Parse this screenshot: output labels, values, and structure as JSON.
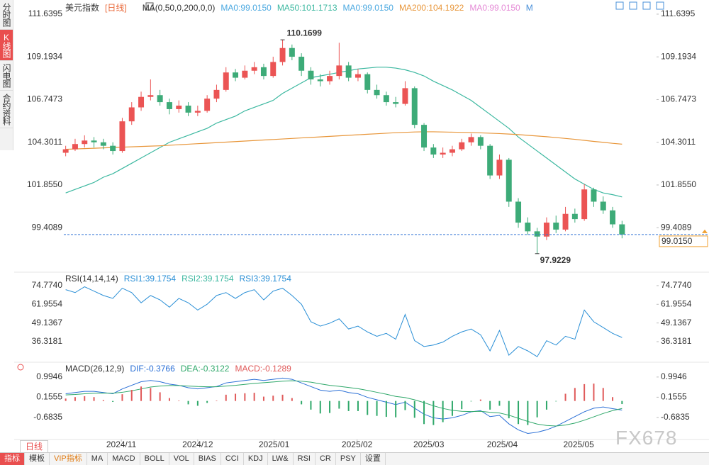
{
  "sidebar_tabs": [
    "分时图",
    "K线图",
    "闪电图",
    "合约资料"
  ],
  "period_tab": "日线",
  "toolbar": [
    "指标",
    "模板",
    "VIP指标",
    "MA",
    "MACD",
    "BOLL",
    "VOL",
    "BIAS",
    "CCI",
    "KDJ",
    "LW&",
    "RSI",
    "CR",
    "PSY",
    "设置"
  ],
  "watermark": "FX678",
  "chart_data": [
    {
      "type": "candlestick",
      "title": "美元指数",
      "period": "[日线]",
      "indicator": "MA(0,50,0,200,0,0)",
      "more_label": "M",
      "up_color": "#eb5454",
      "down_color": "#3dab78",
      "candles": [
        [
          103.7,
          104.1,
          103.5,
          103.9
        ],
        [
          103.9,
          104.5,
          103.8,
          104.2
        ],
        [
          104.2,
          104.7,
          104.0,
          104.4
        ],
        [
          104.4,
          104.6,
          104.0,
          104.3
        ],
        [
          104.3,
          104.5,
          103.9,
          104.1
        ],
        [
          104.1,
          104.3,
          103.6,
          103.8
        ],
        [
          103.8,
          105.7,
          103.7,
          105.5
        ],
        [
          105.5,
          106.6,
          105.3,
          106.3
        ],
        [
          106.3,
          107.2,
          106.1,
          106.9
        ],
        [
          106.9,
          107.9,
          106.7,
          107.0
        ],
        [
          107.0,
          107.3,
          106.4,
          106.6
        ],
        [
          106.6,
          106.8,
          105.9,
          106.2
        ],
        [
          106.2,
          106.7,
          106.0,
          106.4
        ],
        [
          106.4,
          106.6,
          105.8,
          106.0
        ],
        [
          106.0,
          106.4,
          105.8,
          106.1
        ],
        [
          106.1,
          107.0,
          106.0,
          106.8
        ],
        [
          106.8,
          107.6,
          106.6,
          107.3
        ],
        [
          107.3,
          108.6,
          107.2,
          108.3
        ],
        [
          108.3,
          108.5,
          107.8,
          108.0
        ],
        [
          108.0,
          108.7,
          107.9,
          108.4
        ],
        [
          108.4,
          108.9,
          108.2,
          108.6
        ],
        [
          108.6,
          108.8,
          107.9,
          108.1
        ],
        [
          108.1,
          109.2,
          108.0,
          108.9
        ],
        [
          108.9,
          110.1699,
          108.7,
          109.7
        ],
        [
          109.7,
          109.9,
          109.0,
          109.2
        ],
        [
          109.2,
          109.4,
          108.1,
          108.4
        ],
        [
          108.4,
          108.6,
          107.6,
          107.9
        ],
        [
          107.9,
          108.2,
          107.5,
          107.8
        ],
        [
          107.8,
          108.4,
          107.6,
          108.1
        ],
        [
          108.1,
          110.0,
          107.9,
          108.7
        ],
        [
          108.7,
          108.9,
          107.8,
          108.0
        ],
        [
          108.0,
          108.5,
          107.8,
          108.2
        ],
        [
          108.2,
          108.3,
          107.1,
          107.3
        ],
        [
          107.3,
          107.6,
          106.8,
          107.0
        ],
        [
          107.0,
          107.2,
          106.4,
          106.6
        ],
        [
          106.6,
          106.9,
          106.3,
          106.5
        ],
        [
          106.5,
          107.8,
          106.4,
          107.4
        ],
        [
          107.4,
          107.5,
          105.1,
          105.3
        ],
        [
          105.3,
          105.4,
          103.8,
          104.0
        ],
        [
          104.0,
          104.2,
          103.4,
          103.6
        ],
        [
          103.6,
          104.0,
          103.4,
          103.7
        ],
        [
          103.7,
          104.1,
          103.5,
          103.9
        ],
        [
          103.9,
          104.5,
          103.8,
          104.3
        ],
        [
          104.3,
          104.8,
          104.1,
          104.6
        ],
        [
          104.6,
          104.7,
          103.9,
          104.1
        ],
        [
          104.1,
          104.2,
          102.2,
          102.4
        ],
        [
          102.4,
          103.6,
          102.2,
          103.3
        ],
        [
          103.3,
          103.4,
          100.6,
          100.9
        ],
        [
          100.9,
          101.1,
          99.4,
          99.7
        ],
        [
          99.7,
          100.0,
          99.0,
          99.2
        ],
        [
          99.2,
          99.4,
          97.9229,
          98.9
        ],
        [
          98.9,
          100.0,
          98.7,
          99.7
        ],
        [
          99.7,
          100.1,
          99.1,
          99.3
        ],
        [
          99.3,
          100.6,
          99.2,
          100.2
        ],
        [
          100.2,
          100.5,
          99.7,
          99.9
        ],
        [
          99.9,
          101.9,
          99.8,
          101.6
        ],
        [
          101.6,
          101.7,
          100.6,
          100.9
        ],
        [
          100.9,
          101.2,
          100.2,
          100.4
        ],
        [
          100.4,
          100.6,
          99.4,
          99.6
        ],
        [
          99.6,
          99.8,
          98.8,
          99.015
        ]
      ],
      "series": [
        {
          "name": "MA0:99.0150",
          "color": "#4aa8e0"
        },
        {
          "name": "MA50:101.1713",
          "color": "#3cb8a0",
          "values": [
            101.4,
            101.6,
            101.8,
            102.0,
            102.3,
            102.5,
            102.8,
            103.1,
            103.4,
            103.7,
            104.0,
            104.3,
            104.5,
            104.7,
            104.9,
            105.1,
            105.4,
            105.6,
            105.8,
            106.1,
            106.3,
            106.5,
            106.7,
            107.1,
            107.4,
            107.7,
            108.0,
            108.1,
            108.2,
            108.3,
            108.4,
            108.5,
            108.55,
            108.6,
            108.6,
            108.55,
            108.45,
            108.3,
            108.1,
            107.8,
            107.55,
            107.3,
            107.0,
            106.7,
            106.3,
            105.9,
            105.5,
            105.1,
            104.6,
            104.2,
            103.8,
            103.4,
            103.0,
            102.6,
            102.2,
            101.9,
            101.6,
            101.4,
            101.3,
            101.1713
          ]
        },
        {
          "name": "MA0:99.0150",
          "color": "#4aa8e0"
        },
        {
          "name": "MA200:104.1922",
          "color": "#e8963a",
          "values": [
            103.9,
            103.92,
            103.94,
            103.96,
            103.98,
            104.0,
            104.02,
            104.04,
            104.06,
            104.08,
            104.1,
            104.13,
            104.16,
            104.19,
            104.22,
            104.25,
            104.28,
            104.31,
            104.34,
            104.37,
            104.4,
            104.43,
            104.46,
            104.49,
            104.52,
            104.55,
            104.58,
            104.61,
            104.64,
            104.67,
            104.7,
            104.73,
            104.76,
            104.79,
            104.82,
            104.85,
            104.87,
            104.89,
            104.9,
            104.9,
            104.89,
            104.88,
            104.87,
            104.86,
            104.84,
            104.82,
            104.8,
            104.77,
            104.74,
            104.7,
            104.66,
            104.62,
            104.57,
            104.52,
            104.47,
            104.41,
            104.35,
            104.3,
            104.24,
            104.1922
          ]
        },
        {
          "name": "MA0:99.0150",
          "color": "#e58ad6"
        }
      ],
      "max_label": 110.1699,
      "min_label": 97.9229,
      "last_price": {
        "value": 99.015,
        "label": "99.0150"
      },
      "last_color": "#f0a030",
      "ylim": [
        96.9,
        112.45
      ],
      "yticks": [
        111.6395,
        109.1934,
        106.7473,
        104.3011,
        {
          "value": 101.855,
          "label": "101.8550"
        },
        99.4089
      ],
      "xticks": [
        {
          "value": 5.9,
          "label": "2024/11"
        },
        {
          "value": 14,
          "label": "2024/12"
        },
        {
          "value": 22.1,
          "label": "2025/01"
        },
        {
          "value": 30.9,
          "label": "2025/02"
        },
        {
          "value": 38.5,
          "label": "2025/03"
        },
        {
          "value": 46.3,
          "label": "2025/04"
        },
        {
          "value": 54.4,
          "label": "2025/05"
        }
      ]
    },
    {
      "type": "line",
      "title": "RSI(14,14,14)",
      "ylim": [
        22.7,
        83.5
      ],
      "yticks": [
        {
          "value": 74.774,
          "label": "74.7740"
        },
        61.9554,
        49.1367,
        36.3181
      ],
      "series": [
        {
          "name": "RSI1:39.1754",
          "color": "#2a8fd6",
          "values": [
            72,
            70,
            74,
            71,
            68,
            66,
            73,
            70,
            63,
            68,
            65,
            60,
            66,
            63,
            58,
            62,
            68,
            70,
            66,
            70,
            72,
            65,
            71,
            73,
            68,
            62,
            50,
            47,
            49,
            52,
            45,
            47,
            43,
            40,
            42,
            38,
            55,
            37,
            33,
            34,
            36,
            40,
            43,
            45,
            41,
            30,
            44,
            27,
            33,
            30,
            26,
            37,
            34,
            40,
            38,
            58,
            50,
            46,
            42,
            39.1754
          ]
        },
        {
          "name": "RSI2:39.1754",
          "color": "#3cb8a0"
        },
        {
          "name": "RSI3:39.1754",
          "color": "#2a8fd6"
        }
      ]
    },
    {
      "type": "macd",
      "title": "MACD(26,12,9)",
      "ylim": [
        -1.6,
        1.58
      ],
      "yticks": [
        0.9946,
        0.1555,
        -0.6835
      ],
      "series": [
        {
          "name": "DIF:-0.3766",
          "color": "#2a6fd6",
          "values": [
            0.3,
            0.35,
            0.4,
            0.4,
            0.35,
            0.3,
            0.5,
            0.65,
            0.8,
            0.85,
            0.8,
            0.7,
            0.65,
            0.55,
            0.5,
            0.55,
            0.6,
            0.75,
            0.8,
            0.85,
            0.9,
            0.85,
            0.9,
            0.95,
            0.9,
            0.75,
            0.6,
            0.45,
            0.4,
            0.45,
            0.35,
            0.3,
            0.15,
            0.05,
            -0.05,
            -0.15,
            -0.05,
            -0.3,
            -0.55,
            -0.7,
            -0.75,
            -0.7,
            -0.6,
            -0.45,
            -0.4,
            -0.65,
            -0.6,
            -0.95,
            -1.2,
            -1.35,
            -1.3,
            -1.2,
            -1.05,
            -0.85,
            -0.65,
            -0.45,
            -0.3,
            -0.25,
            -0.32,
            -0.3766
          ]
        },
        {
          "name": "DEA:-0.3122",
          "color": "#2fa86a",
          "values": [
            0.25,
            0.27,
            0.3,
            0.32,
            0.33,
            0.32,
            0.36,
            0.42,
            0.5,
            0.58,
            0.62,
            0.64,
            0.64,
            0.62,
            0.6,
            0.59,
            0.59,
            0.62,
            0.65,
            0.69,
            0.73,
            0.76,
            0.79,
            0.82,
            0.84,
            0.82,
            0.78,
            0.71,
            0.65,
            0.61,
            0.56,
            0.51,
            0.44,
            0.36,
            0.28,
            0.19,
            0.14,
            0.05,
            -0.07,
            -0.2,
            -0.31,
            -0.39,
            -0.43,
            -0.44,
            -0.43,
            -0.47,
            -0.5,
            -0.59,
            -0.72,
            -0.85,
            -0.96,
            -1.02,
            -1.04,
            -1.0,
            -0.92,
            -0.8,
            -0.66,
            -0.52,
            -0.4,
            -0.3122
          ]
        },
        {
          "name": "MACD:-0.1289",
          "color": "#e05a5a",
          "down_color": "#2fa86a",
          "values": [
            0.1,
            0.16,
            0.2,
            0.16,
            0.04,
            -0.04,
            0.28,
            0.46,
            0.6,
            0.54,
            0.36,
            0.12,
            0.02,
            -0.14,
            -0.2,
            -0.08,
            0.02,
            0.26,
            0.3,
            0.32,
            0.34,
            0.18,
            0.22,
            0.26,
            0.12,
            -0.14,
            -0.36,
            -0.52,
            -0.5,
            -0.32,
            -0.42,
            -0.42,
            -0.58,
            -0.62,
            -0.66,
            -0.68,
            -0.38,
            -0.7,
            -0.96,
            -1.0,
            -0.88,
            -0.62,
            -0.34,
            -0.02,
            0.06,
            -0.36,
            -0.2,
            -0.72,
            -0.96,
            -1.0,
            -0.68,
            -0.36,
            -0.02,
            0.3,
            0.54,
            0.7,
            0.72,
            0.54,
            0.16,
            -0.1289
          ]
        }
      ]
    }
  ]
}
